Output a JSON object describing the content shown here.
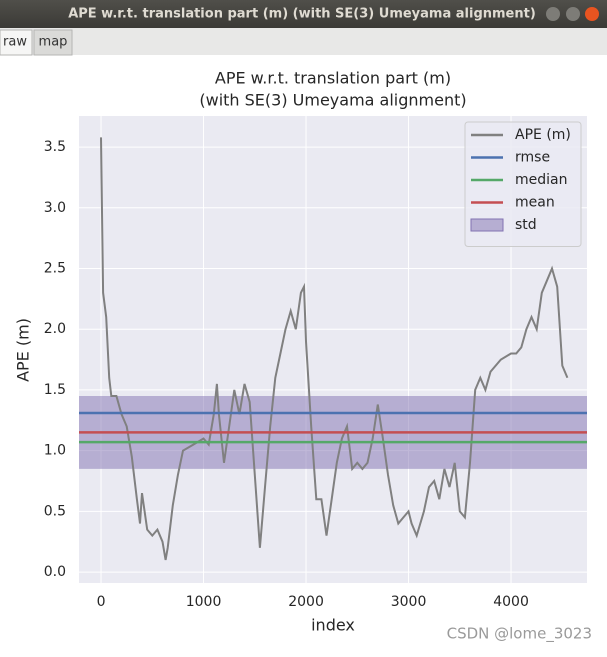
{
  "window": {
    "title": "APE w.r.t. translation part (m) (with SE(3) Umeyama alignment)"
  },
  "tabs": [
    "raw",
    "map"
  ],
  "chart_data": {
    "type": "line",
    "title": "APE w.r.t. translation part (m)",
    "subtitle": "(with SE(3) Umeyama alignment)",
    "xlabel": "index",
    "ylabel": "APE (m)",
    "x": [
      0,
      20,
      50,
      80,
      100,
      150,
      200,
      250,
      300,
      350,
      380,
      400,
      450,
      500,
      550,
      600,
      630,
      650,
      700,
      750,
      800,
      900,
      1000,
      1050,
      1100,
      1130,
      1150,
      1200,
      1250,
      1300,
      1350,
      1400,
      1450,
      1500,
      1550,
      1600,
      1650,
      1700,
      1750,
      1800,
      1850,
      1900,
      1950,
      1980,
      2000,
      2050,
      2100,
      2150,
      2200,
      2250,
      2300,
      2350,
      2400,
      2450,
      2500,
      2550,
      2600,
      2650,
      2700,
      2750,
      2800,
      2850,
      2900,
      2950,
      3000,
      3030,
      3080,
      3150,
      3200,
      3250,
      3300,
      3350,
      3400,
      3450,
      3500,
      3550,
      3600,
      3650,
      3700,
      3750,
      3800,
      3900,
      4000,
      4050,
      4100,
      4150,
      4200,
      4250,
      4300,
      4350,
      4400,
      4450,
      4500,
      4550
    ],
    "series": [
      {
        "name": "APE (m)",
        "color": "#808080",
        "values": [
          3.58,
          2.3,
          2.1,
          1.6,
          1.45,
          1.45,
          1.3,
          1.2,
          0.95,
          0.6,
          0.4,
          0.65,
          0.35,
          0.3,
          0.35,
          0.25,
          0.1,
          0.2,
          0.55,
          0.8,
          1.0,
          1.05,
          1.1,
          1.05,
          1.3,
          1.55,
          1.3,
          0.9,
          1.2,
          1.5,
          1.3,
          1.55,
          1.4,
          0.8,
          0.2,
          0.7,
          1.2,
          1.6,
          1.8,
          2.0,
          2.15,
          2.0,
          2.3,
          2.35,
          1.9,
          1.2,
          0.6,
          0.6,
          0.3,
          0.6,
          0.9,
          1.1,
          1.2,
          0.85,
          0.9,
          0.85,
          0.9,
          1.1,
          1.38,
          1.1,
          0.8,
          0.55,
          0.4,
          0.45,
          0.5,
          0.4,
          0.3,
          0.5,
          0.7,
          0.75,
          0.6,
          0.85,
          0.7,
          0.9,
          0.5,
          0.45,
          0.9,
          1.5,
          1.6,
          1.5,
          1.65,
          1.75,
          1.8,
          1.8,
          1.85,
          2.0,
          2.1,
          2.0,
          2.3,
          2.4,
          2.5,
          2.35,
          1.7,
          1.6
        ]
      }
    ],
    "hlines": [
      {
        "name": "rmse",
        "color": "#4c72b0",
        "value": 1.31
      },
      {
        "name": "median",
        "color": "#55a868",
        "value": 1.07
      },
      {
        "name": "mean",
        "color": "#c44e52",
        "value": 1.15
      }
    ],
    "band": {
      "name": "std",
      "color": "#8172b2",
      "value": 0.3
    },
    "xlim": [
      -215,
      4741
    ],
    "ylim": [
      -0.09,
      3.756
    ],
    "xticks": [
      0,
      1000,
      2000,
      3000,
      4000
    ],
    "yticks": [
      {
        "value": 0,
        "label": "0.0"
      },
      0.5,
      {
        "value": 1,
        "label": "1.0"
      },
      1.5,
      {
        "value": 2,
        "label": "2.0"
      },
      2.5,
      {
        "value": 3,
        "label": "3.0"
      },
      3.5
    ],
    "grid": true,
    "legend": "upper right"
  },
  "watermark": "CSDN @lome_3023"
}
